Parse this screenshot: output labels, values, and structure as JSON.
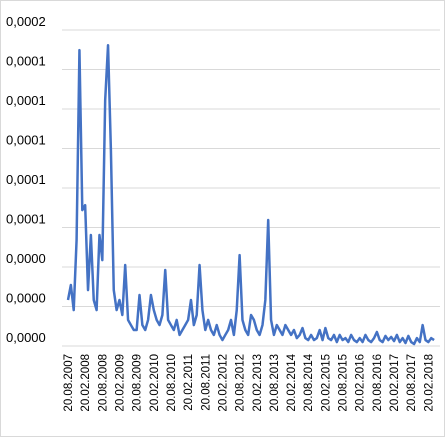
{
  "chart_data": {
    "type": "line",
    "categories": [
      "20.08.2007",
      null,
      null,
      null,
      null,
      null,
      "20.02.2008",
      null,
      null,
      null,
      null,
      null,
      "20.08.2008",
      null,
      null,
      null,
      null,
      null,
      "20.02.2009",
      null,
      null,
      null,
      null,
      null,
      "20.08.2009",
      null,
      null,
      null,
      null,
      null,
      "20.02.2010",
      null,
      null,
      null,
      null,
      null,
      "20.08.2010",
      null,
      null,
      null,
      null,
      null,
      "20.02.2011",
      null,
      null,
      null,
      null,
      null,
      "20.08.2011",
      null,
      null,
      null,
      null,
      null,
      "20.02.2012",
      null,
      null,
      null,
      null,
      null,
      "20.08.2012",
      null,
      null,
      null,
      null,
      null,
      "20.02.2013",
      null,
      null,
      null,
      null,
      null,
      "20.08.2013",
      null,
      null,
      null,
      null,
      null,
      "20.02.2014",
      null,
      null,
      null,
      null,
      null,
      "20.08.2014",
      null,
      null,
      null,
      null,
      null,
      "20.02.2015",
      null,
      null,
      null,
      null,
      null,
      "20.08.2015",
      null,
      null,
      null,
      null,
      null,
      "20.02.2016",
      null,
      null,
      null,
      null,
      null,
      "20.08.2016",
      null,
      null,
      null,
      null,
      null,
      "20.02.2017",
      null,
      null,
      null,
      null,
      null,
      "20.08.2017",
      null,
      null,
      null,
      null,
      null,
      "20.02.2018",
      null,
      null
    ],
    "values": [
      2.33e-05,
      3.09e-05,
      1.82e-05,
      5.36e-05,
      0.0001498,
      6.88e-05,
      7.13e-05,
      2.83e-05,
      5.62e-05,
      2.33e-05,
      1.82e-05,
      5.62e-05,
      4.35e-05,
      0.0001245,
      0.0001523,
      9.92e-05,
      2.83e-05,
      1.82e-05,
      2.33e-05,
      1.57e-05,
      4.1e-05,
      1.32e-05,
      1.06e-05,
      8.1e-06,
      8.1e-06,
      2.58e-05,
      1.06e-05,
      8.1e-06,
      1.32e-05,
      2.58e-05,
      1.82e-05,
      1.32e-05,
      1.06e-05,
      1.57e-05,
      3.85e-05,
      1.32e-05,
      1.06e-05,
      8.1e-06,
      1.32e-05,
      5.6e-06,
      8.1e-06,
      1.06e-05,
      1.32e-05,
      2.33e-05,
      1.06e-05,
      1.57e-05,
      4.1e-05,
      1.82e-05,
      8.1e-06,
      1.32e-05,
      8.1e-06,
      5.6e-06,
      1.06e-05,
      5.6e-06,
      3e-06,
      5.6e-06,
      8.1e-06,
      1.32e-05,
      5.6e-06,
      1.82e-05,
      4.6e-05,
      1.32e-05,
      8.1e-06,
      5.6e-06,
      1.57e-05,
      1.32e-05,
      8.1e-06,
      5.6e-06,
      1.06e-05,
      2.33e-05,
      6.38e-05,
      1.32e-05,
      5.6e-06,
      1.06e-05,
      8.1e-06,
      5.6e-06,
      1.06e-05,
      8.1e-06,
      5.6e-06,
      8.1e-06,
      4e-06,
      5.6e-06,
      9.1e-06,
      4e-06,
      3e-06,
      5.6e-06,
      3e-06,
      4e-06,
      8.1e-06,
      3e-06,
      9.1e-06,
      4e-06,
      3e-06,
      5.6e-06,
      2e-06,
      5.6e-06,
      3e-06,
      4e-06,
      2e-06,
      5.6e-06,
      3e-06,
      2e-06,
      4e-06,
      2e-06,
      5.6e-06,
      3e-06,
      2e-06,
      4e-06,
      7.1e-06,
      3e-06,
      2e-06,
      5.1e-06,
      3e-06,
      4.6e-06,
      2.5e-06,
      5.6e-06,
      2e-06,
      4e-06,
      1.5e-06,
      5.1e-06,
      2e-06,
      1e-06,
      4e-06,
      2e-06,
      1.06e-05,
      3e-06,
      2e-06,
      4e-06,
      3e-06
    ],
    "color": "#4472c4",
    "ylim": [
      0,
      0.00016
    ],
    "yticks": [
      {
        "value": 0,
        "label": "0,0000"
      },
      {
        "value": 2e-05,
        "label": "0,0000"
      },
      {
        "value": 4e-05,
        "label": "0,0000"
      },
      {
        "value": 6e-05,
        "label": "0,0001"
      },
      {
        "value": 8e-05,
        "label": "0,0001"
      },
      {
        "value": 0.0001,
        "label": "0,0001"
      },
      {
        "value": 0.00012,
        "label": "0,0001"
      },
      {
        "value": 0.00014,
        "label": "0,0001"
      },
      {
        "value": 0.00016,
        "label": "0,0002"
      }
    ],
    "grid": true
  }
}
